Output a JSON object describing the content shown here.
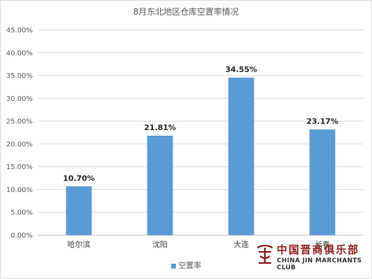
{
  "chart_data": {
    "type": "bar",
    "title": "8月东北地区仓库空置率情况",
    "categories": [
      "哈尔滨",
      "沈阳",
      "大连",
      "长春"
    ],
    "series": [
      {
        "name": "空置率",
        "values": [
          10.7,
          21.81,
          34.55,
          23.17
        ],
        "labels": [
          "10.70%",
          "21.81%",
          "34.55%",
          "23.17%"
        ],
        "color": "#5b9bd5"
      }
    ],
    "ylim": [
      0,
      45
    ],
    "yticks": [
      "0.00%",
      "5.00%",
      "10.00%",
      "15.00%",
      "20.00%",
      "25.00%",
      "30.00%",
      "35.00%",
      "40.00%",
      "45.00%"
    ],
    "ytick_values": [
      0,
      5,
      10,
      15,
      20,
      25,
      30,
      35,
      40,
      45
    ],
    "grid": true,
    "legend_position": "bottom"
  },
  "watermark": {
    "text_cn": "中国晋商俱乐部",
    "text_en": "CHINA JIN MARCHANTS CLUB"
  }
}
